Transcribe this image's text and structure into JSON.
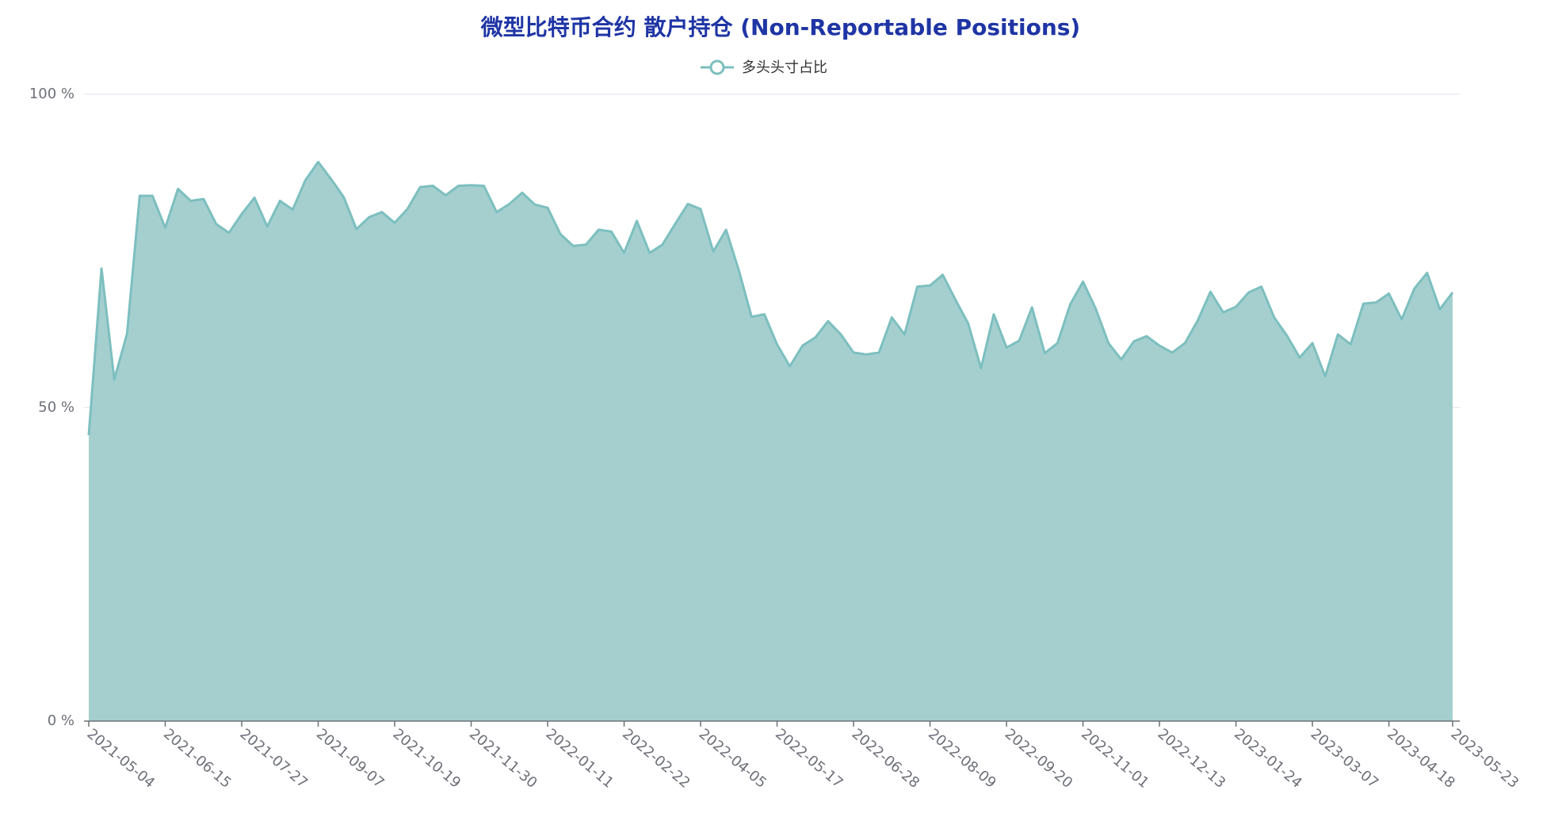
{
  "chart_data": {
    "type": "area",
    "title": "微型比特币合约 散户持仓 (Non-Reportable Positions)",
    "categories": [
      "2021-05-04",
      null,
      null,
      null,
      null,
      null,
      "2021-06-15",
      null,
      null,
      null,
      null,
      null,
      "2021-07-27",
      null,
      null,
      null,
      null,
      null,
      "2021-09-07",
      null,
      null,
      null,
      null,
      null,
      "2021-10-19",
      null,
      null,
      null,
      null,
      null,
      "2021-11-30",
      null,
      null,
      null,
      null,
      null,
      "2022-01-11",
      null,
      null,
      null,
      null,
      null,
      "2022-02-22",
      null,
      null,
      null,
      null,
      null,
      "2022-04-05",
      null,
      null,
      null,
      null,
      null,
      "2022-05-17",
      null,
      null,
      null,
      null,
      null,
      "2022-06-28",
      null,
      null,
      null,
      null,
      null,
      "2022-08-09",
      null,
      null,
      null,
      null,
      null,
      "2022-09-20",
      null,
      null,
      null,
      null,
      null,
      "2022-11-01",
      null,
      null,
      null,
      null,
      null,
      "2022-12-13",
      null,
      null,
      null,
      null,
      null,
      "2023-01-24",
      null,
      null,
      null,
      null,
      null,
      "2023-03-07",
      null,
      null,
      null,
      null,
      null,
      "2023-04-18",
      null,
      null,
      null,
      null,
      "2023-05-23"
    ],
    "series": [
      {
        "name": "多头头寸占比",
        "color": "#7dbfbf",
        "fill": "#a5cfcf",
        "values": [
          45.6,
          72.2,
          54.5,
          61.8,
          83.8,
          83.8,
          78.7,
          84.9,
          83.0,
          83.3,
          79.3,
          77.9,
          80.9,
          83.5,
          78.9,
          83.0,
          81.6,
          86.3,
          89.2,
          86.5,
          83.6,
          78.5,
          80.4,
          81.2,
          79.5,
          81.7,
          85.2,
          85.4,
          83.9,
          85.4,
          85.5,
          85.4,
          81.2,
          82.5,
          84.3,
          82.4,
          81.9,
          77.7,
          75.8,
          76.0,
          78.4,
          78.1,
          74.7,
          79.8,
          74.7,
          76.0,
          79.3,
          82.5,
          81.7,
          74.9,
          78.4,
          71.9,
          64.5,
          64.9,
          60.1,
          56.6,
          59.9,
          61.2,
          63.8,
          61.7,
          58.8,
          58.5,
          58.8,
          64.4,
          61.7,
          69.3,
          69.5,
          71.2,
          67.2,
          63.4,
          56.3,
          64.9,
          59.6,
          60.7,
          66.0,
          58.7,
          60.3,
          66.5,
          70.1,
          65.8,
          60.3,
          57.7,
          60.6,
          61.4,
          59.9,
          58.8,
          60.3,
          63.9,
          68.5,
          65.2,
          66.1,
          68.4,
          69.3,
          64.4,
          61.5,
          58.0,
          60.3,
          55.0,
          61.7,
          60.1,
          66.6,
          66.8,
          68.2,
          64.1,
          69.0,
          71.5,
          65.7,
          68.4
        ]
      }
    ],
    "ylim": [
      0,
      100
    ],
    "yticks": [
      {
        "value": 0,
        "label": "0 %"
      },
      {
        "value": 50,
        "label": "50 %"
      },
      {
        "value": 100,
        "label": "100 %"
      }
    ],
    "grid": true
  }
}
